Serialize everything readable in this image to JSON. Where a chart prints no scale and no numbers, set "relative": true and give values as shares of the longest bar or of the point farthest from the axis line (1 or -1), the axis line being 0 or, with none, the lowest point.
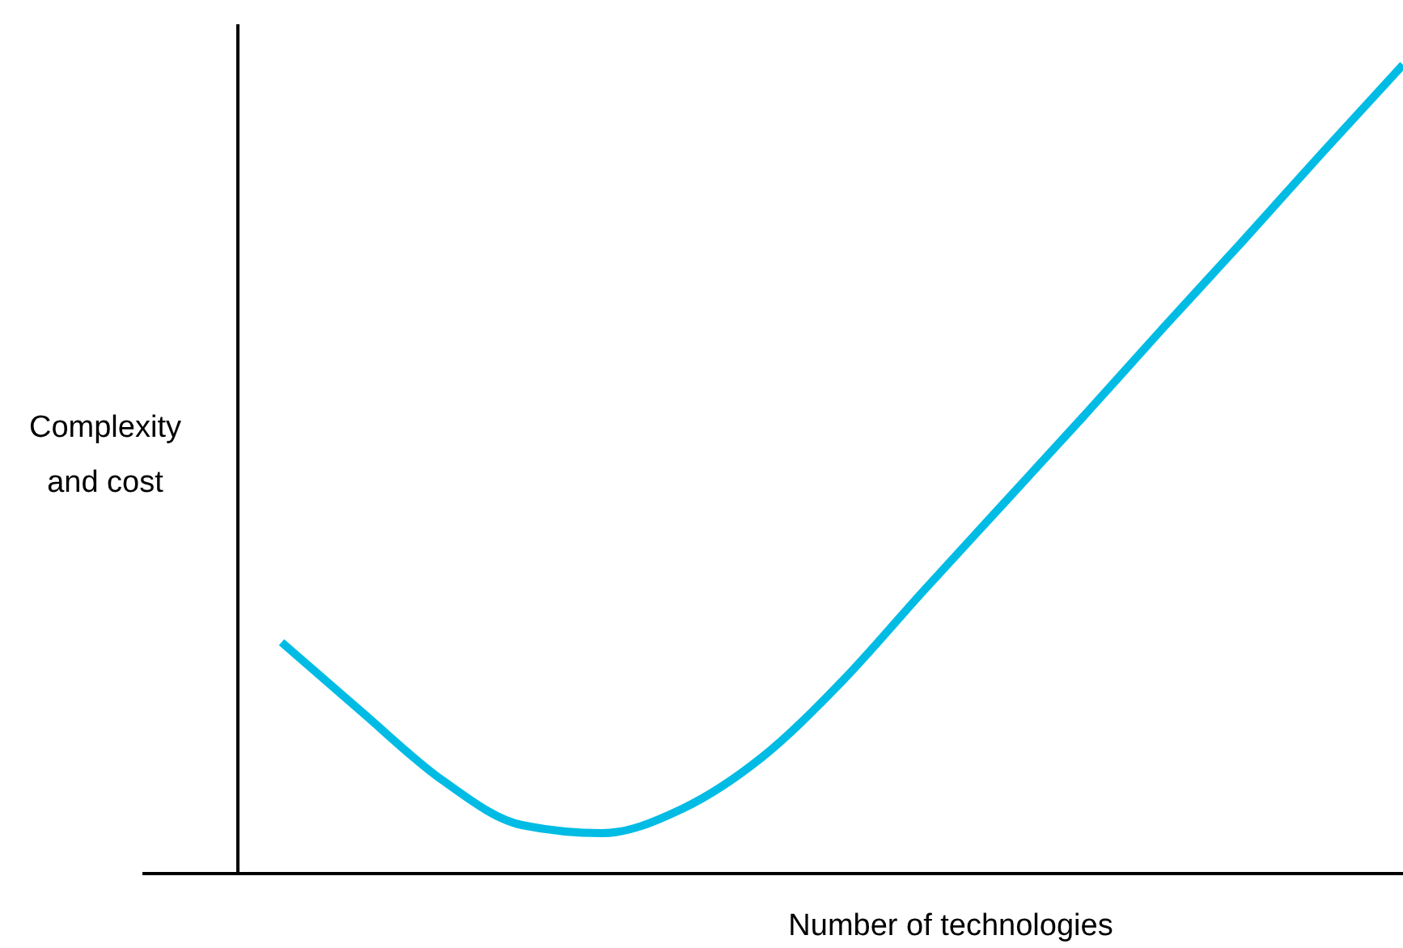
{
  "chart_data": {
    "type": "line",
    "relative": true,
    "xlabel": "Number of technologies",
    "ylabel": "Complexity and cost",
    "categories": [
      null,
      null,
      null,
      null,
      null,
      null,
      null,
      null,
      null,
      null,
      null,
      null,
      null,
      null,
      null
    ],
    "series": [
      {
        "color": "#00bce4",
        "values": [
          0.286,
          0.2,
          0.116,
          0.06,
          0.05,
          0.08,
          0.144,
          0.238,
          0.348,
          0.456,
          0.564,
          0.674,
          0.782,
          0.892,
          1.0
        ]
      }
    ],
    "grid": false,
    "legend": false,
    "marker": "none",
    "line_style": "solid"
  }
}
